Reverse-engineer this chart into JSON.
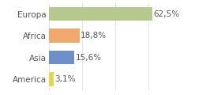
{
  "categories": [
    "America",
    "Asia",
    "Africa",
    "Europa"
  ],
  "values": [
    3.1,
    15.6,
    18.8,
    62.5
  ],
  "labels": [
    "3,1%",
    "15,6%",
    "18,8%",
    "62,5%"
  ],
  "bar_colors": [
    "#e8d44d",
    "#6e8fc9",
    "#f0a86e",
    "#b5c98e"
  ],
  "background_color": "#ffffff",
  "plot_bg_color": "#ffffff",
  "xlim": [
    0,
    80
  ],
  "bar_height": 0.65,
  "label_fontsize": 7.5,
  "tick_fontsize": 7.5,
  "grid_color": "#dddddd",
  "text_color": "#555555",
  "grid_positions": [
    0,
    20,
    40,
    60,
    80
  ]
}
